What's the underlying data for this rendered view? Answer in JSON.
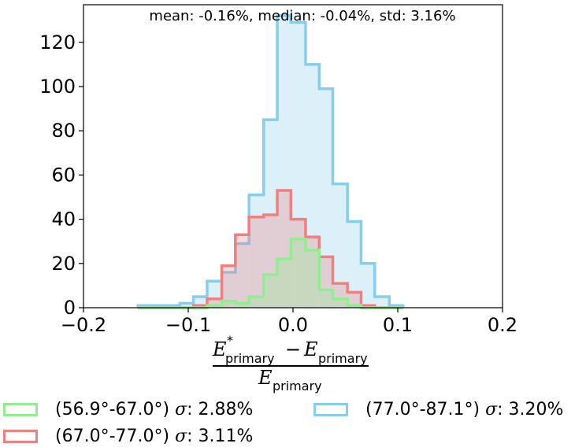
{
  "chart_data": {
    "type": "histogram",
    "annotation": "mean: -0.16%, median: -0.04%, std: 3.16%",
    "xlabel": {
      "numerator_symbol": "E",
      "numerator_star": "*",
      "numerator_sub": "primary",
      "operator": "−",
      "second_symbol": "E",
      "second_sub": "primary",
      "denominator_symbol": "E",
      "denominator_sub": "primary"
    },
    "xlim": [
      -0.2,
      0.2
    ],
    "ylim": [
      0,
      137
    ],
    "x_ticks": [
      -0.2,
      -0.1,
      0.0,
      0.1,
      0.2
    ],
    "x_tick_labels": [
      "−0.2",
      "−0.1",
      "0.0",
      "0.1",
      "0.2"
    ],
    "y_ticks": [
      0,
      20,
      40,
      60,
      80,
      100,
      120
    ],
    "y_tick_labels": [
      "0",
      "20",
      "40",
      "60",
      "80",
      "100",
      "120"
    ],
    "bin_edges": [
      -0.148,
      -0.135,
      -0.122,
      -0.108,
      -0.095,
      -0.082,
      -0.068,
      -0.055,
      -0.042,
      -0.028,
      -0.015,
      -0.002,
      0.012,
      0.025,
      0.038,
      0.052,
      0.065,
      0.078,
      0.092,
      0.105
    ],
    "series": [
      {
        "name": "(77.0°-87.1°)",
        "sigma": "3.20%",
        "color": "#87CEEB",
        "fill": "rgba(135,206,235,0.30)",
        "values": [
          1,
          1,
          1,
          2,
          5,
          12,
          16,
          29,
          51,
          85,
          132,
          129,
          110,
          99,
          56,
          39,
          20,
          5,
          1
        ]
      },
      {
        "name": "(67.0°-77.0°)",
        "sigma": "3.11%",
        "color": "#F08080",
        "fill": "rgba(240,128,128,0.30)",
        "values": [
          0,
          0,
          0,
          0,
          1,
          4,
          19,
          33,
          41,
          42,
          53,
          40,
          32,
          23,
          11,
          7,
          1,
          0,
          0
        ]
      },
      {
        "name": "(56.9°-67.0°)",
        "sigma": "2.88%",
        "color": "#90EE90",
        "fill": "rgba(144,238,144,0.30)",
        "values": [
          0,
          0,
          0,
          0,
          0,
          1,
          3,
          2,
          5,
          15,
          22,
          31,
          26,
          8,
          4,
          1,
          0,
          0,
          0
        ]
      }
    ],
    "legend": [
      {
        "label": "(56.9°-67.0°)",
        "sigma_symbol": "σ",
        "sigma": ": 2.88%",
        "color": "#90EE90"
      },
      {
        "label": "(67.0°-77.0°)",
        "sigma_symbol": "σ",
        "sigma": ": 3.11%",
        "color": "#F08080"
      },
      {
        "label": "(77.0°-87.1°)",
        "sigma_symbol": "σ",
        "sigma": ": 3.20%",
        "color": "#87CEEB"
      }
    ]
  }
}
